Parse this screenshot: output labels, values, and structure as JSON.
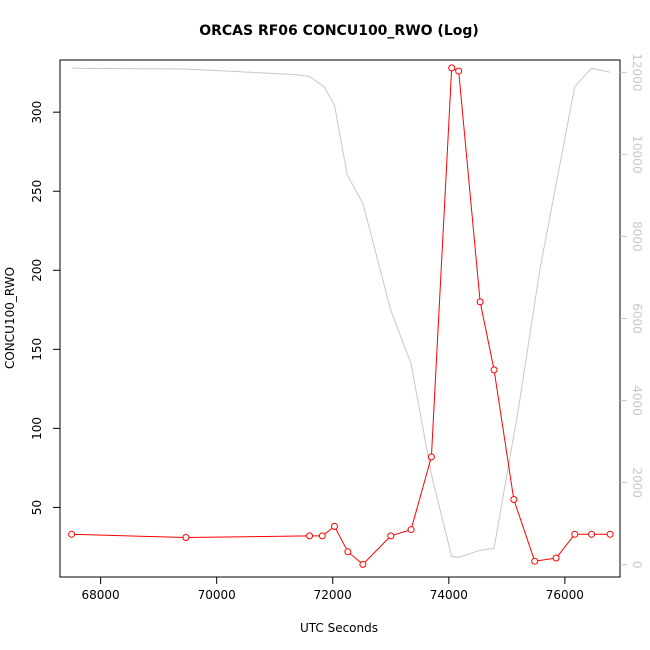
{
  "chart_data": {
    "type": "line",
    "title": "ORCAS RF06 CONCU100_RWO (Log)",
    "xlabel": "UTC Seconds",
    "ylabel": "CONCU100_RWO",
    "xlim": [
      67300,
      76950
    ],
    "ylim": [
      6,
      333
    ],
    "y2lim": [
      -300,
      12300
    ],
    "x_ticks": [
      68000,
      70000,
      72000,
      74000,
      76000
    ],
    "y_ticks": [
      50,
      100,
      150,
      200,
      250,
      300
    ],
    "y2_ticks": [
      0,
      2000,
      4000,
      6000,
      8000,
      10000,
      12000
    ],
    "grid": false,
    "series": [
      {
        "axis": "left",
        "color": "#ff0000",
        "style": "line+circle-markers",
        "x": [
          67500,
          69470,
          71600,
          71820,
          72030,
          72260,
          72520,
          73000,
          73350,
          73700,
          74050,
          74170,
          74540,
          74780,
          75120,
          75480,
          75850,
          76170,
          76460,
          76780
        ],
        "y": [
          33,
          31,
          32,
          32,
          38,
          22,
          14,
          32,
          36,
          82,
          328,
          326,
          180,
          137,
          55,
          16,
          18,
          33,
          33,
          33
        ]
      },
      {
        "axis": "right",
        "color": "#c8c8c8",
        "style": "line",
        "x": [
          67500,
          69470,
          71300,
          71600,
          71850,
          72030,
          72250,
          72520,
          73000,
          73350,
          73700,
          74050,
          74170,
          74540,
          74780,
          75200,
          75570,
          76170,
          76460,
          76780
        ],
        "y": [
          12100,
          12080,
          11950,
          11900,
          11650,
          11200,
          9500,
          8800,
          6200,
          4900,
          2200,
          200,
          180,
          350,
          400,
          3800,
          7200,
          11650,
          12100,
          12000
        ]
      }
    ]
  }
}
